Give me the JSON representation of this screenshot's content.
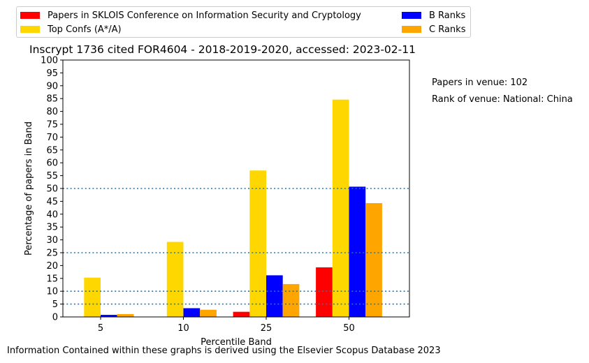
{
  "title": "Inscrypt 1736 cited FOR4604 - 2018-2019-2020, accessed: 2023-02-11",
  "footer": "Information Contained within these graphs is derived using the Elsevier Scopus Database 2023",
  "side_notes": {
    "papers": "Papers in venue: 102",
    "rank": "Rank of venue: National: China"
  },
  "legend": [
    {
      "label": "Papers in SKLOIS Conference on Information Security and Cryptology",
      "color": "#ff0000"
    },
    {
      "label": "Top Confs (A*/A)",
      "color": "#ffd700"
    },
    {
      "label": "B Ranks",
      "color": "#0000ff"
    },
    {
      "label": "C Ranks",
      "color": "#ffa500"
    }
  ],
  "chart_data": {
    "type": "bar",
    "title": "Inscrypt 1736 cited FOR4604 - 2018-2019-2020, accessed: 2023-02-11",
    "xlabel": "Percentile Band",
    "ylabel": "Percentage of papers in Band",
    "categories": [
      "5",
      "10",
      "25",
      "50"
    ],
    "ylim": [
      0,
      100
    ],
    "yticks": [
      "0",
      "5",
      "10",
      "15",
      "20",
      "25",
      "30",
      "35",
      "40",
      "45",
      "50",
      "55",
      "60",
      "65",
      "70",
      "75",
      "80",
      "85",
      "90",
      "95",
      "100"
    ],
    "reference_lines": [
      5,
      10,
      25,
      50
    ],
    "legend_position": "top (above plot)",
    "grid": false,
    "series": [
      {
        "name": "Papers in SKLOIS Conference on Information Security and Cryptology",
        "color": "#ff0000",
        "values": [
          0,
          0,
          2,
          19.3
        ]
      },
      {
        "name": "Top Confs (A*/A)",
        "color": "#ffd700",
        "values": [
          15.3,
          29.2,
          57,
          84.6
        ]
      },
      {
        "name": "B Ranks",
        "color": "#0000ff",
        "values": [
          0.8,
          3.4,
          16.2,
          50.7
        ]
      },
      {
        "name": "C Ranks",
        "color": "#ffa500",
        "values": [
          1.1,
          2.8,
          12.8,
          44.3
        ]
      }
    ]
  }
}
